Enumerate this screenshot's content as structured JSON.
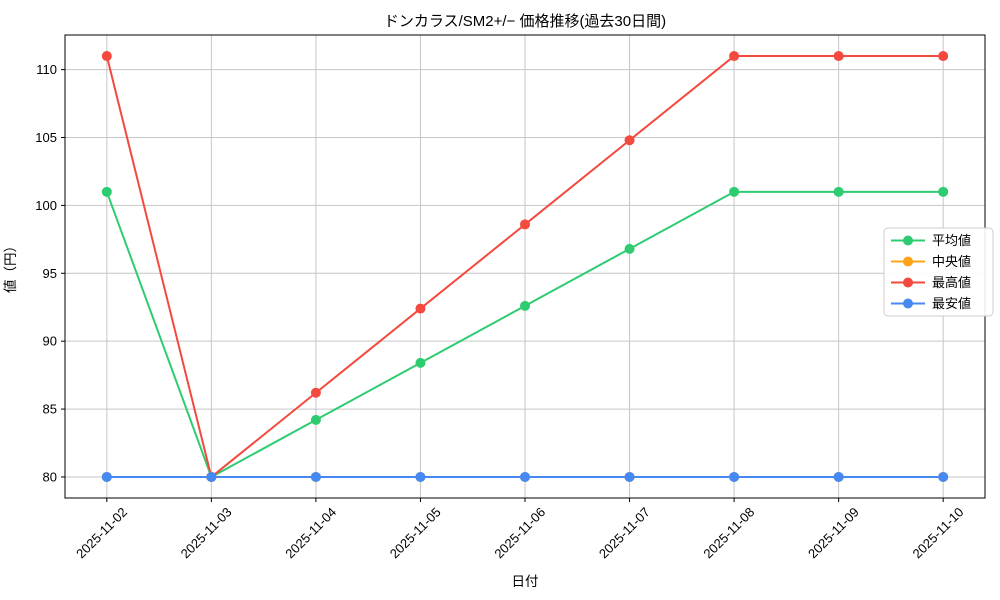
{
  "chart_data": {
    "type": "line",
    "title": "ドンカラス/SM2+/− 価格推移(過去30日間)",
    "xlabel": "日付",
    "ylabel": "値（円）",
    "x": [
      "2025-11-02",
      "2025-11-03",
      "2025-11-04",
      "2025-11-05",
      "2025-11-06",
      "2025-11-07",
      "2025-11-08",
      "2025-11-09",
      "2025-11-10"
    ],
    "series": [
      {
        "name": "平均値",
        "id": "average",
        "color": "#2ecc71",
        "values": [
          101,
          80,
          84.2,
          88.4,
          92.6,
          96.8,
          101,
          101,
          101
        ]
      },
      {
        "name": "中央値",
        "id": "median",
        "color": "#ffa419",
        "values": [
          80,
          80,
          80,
          80,
          80,
          80,
          80,
          80,
          80
        ]
      },
      {
        "name": "最高値",
        "id": "max",
        "color": "#f4493e",
        "values": [
          111,
          80,
          86.2,
          92.4,
          98.6,
          104.8,
          111,
          111,
          111
        ]
      },
      {
        "name": "最安値",
        "id": "min",
        "color": "#4689f3",
        "values": [
          80,
          80,
          80,
          80,
          80,
          80,
          80,
          80,
          80
        ]
      }
    ],
    "yticks": [
      80,
      85,
      90,
      95,
      100,
      105,
      110
    ],
    "ylim": [
      78.45,
      112.55
    ],
    "grid": true,
    "grid_color": "#c6c6c6",
    "spine_color": "#000000",
    "legend_position": "center-right",
    "marker": "circle",
    "line_width": 2,
    "marker_radius": 5,
    "x_tick_rotation": -45
  }
}
